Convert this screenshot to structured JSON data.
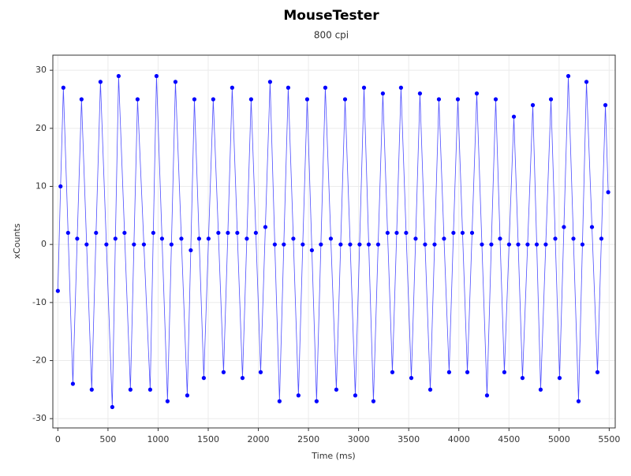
{
  "chart_data": {
    "type": "line",
    "title": "MouseTester",
    "subtitle": "800 cpi",
    "x_label": "Time (ms)",
    "y_label": "xCounts",
    "x": [
      0,
      27,
      55,
      102,
      150,
      193,
      236,
      287,
      338,
      381,
      425,
      484,
      543,
      574,
      606,
      665,
      724,
      759,
      795,
      858,
      921,
      952,
      984,
      1039,
      1094,
      1133,
      1173,
      1232,
      1291,
      1326,
      1362,
      1409,
      1456,
      1503,
      1550,
      1601,
      1653,
      1696,
      1739,
      1790,
      1842,
      1885,
      1928,
      1975,
      2023,
      2070,
      2117,
      2164,
      2211,
      2254,
      2298,
      2349,
      2400,
      2443,
      2487,
      2534,
      2581,
      2624,
      2668,
      2723,
      2778,
      2821,
      2865,
      2916,
      2967,
      3010,
      3054,
      3101,
      3148,
      3195,
      3242,
      3289,
      3337,
      3380,
      3423,
      3474,
      3526,
      3569,
      3612,
      3663,
      3715,
      3758,
      3801,
      3852,
      3903,
      3946,
      3990,
      4037,
      4085,
      4132,
      4179,
      4230,
      4281,
      4324,
      4368,
      4411,
      4454,
      4501,
      4549,
      4592,
      4635,
      4686,
      4738,
      4777,
      4816,
      4867,
      4919,
      4962,
      5005,
      5048,
      5092,
      5143,
      5194,
      5233,
      5273,
      5328,
      5383,
      5422,
      5462,
      5490
    ],
    "series": [
      {
        "color": "#0000ff",
        "values": [
          -8,
          10,
          27,
          2,
          -24,
          1,
          25,
          0,
          -25,
          2,
          28,
          0,
          -28,
          1,
          29,
          2,
          -25,
          0,
          25,
          0,
          -25,
          2,
          29,
          1,
          -27,
          0,
          28,
          1,
          -26,
          -1,
          25,
          1,
          -23,
          1,
          25,
          2,
          -22,
          2,
          27,
          2,
          -23,
          1,
          25,
          2,
          -22,
          3,
          28,
          0,
          -27,
          0,
          27,
          1,
          -26,
          0,
          25,
          -1,
          -27,
          0,
          27,
          1,
          -25,
          0,
          25,
          0,
          -26,
          0,
          27,
          0,
          -27,
          0,
          26,
          2,
          -22,
          2,
          27,
          2,
          -23,
          1,
          26,
          0,
          -25,
          0,
          25,
          1,
          -22,
          2,
          25,
          2,
          -22,
          2,
          26,
          0,
          -26,
          0,
          25,
          1,
          -22,
          0,
          22,
          0,
          -23,
          0,
          24,
          0,
          -25,
          0,
          25,
          1,
          -23,
          3,
          29,
          1,
          -27,
          0,
          28,
          3,
          -22,
          1,
          24,
          9
        ]
      }
    ],
    "xlim": [
      -50,
      5560
    ],
    "ylim": [
      -31.6,
      32.6
    ],
    "xticks": [
      0,
      500,
      1000,
      1500,
      2000,
      2500,
      3000,
      3500,
      4000,
      4500,
      5000,
      5500
    ],
    "yticks": [
      -30,
      -20,
      -10,
      0,
      10,
      20,
      30
    ],
    "grid": true
  }
}
